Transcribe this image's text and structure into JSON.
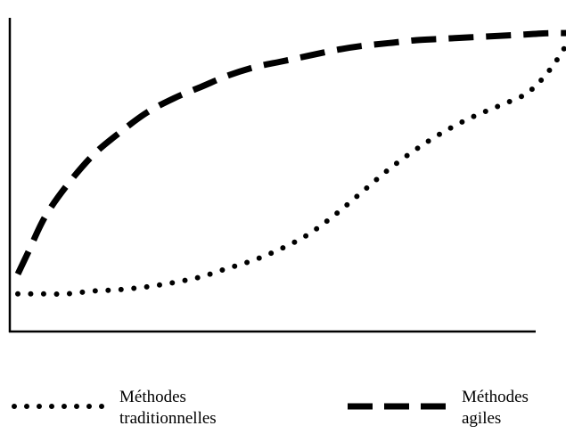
{
  "chart_data": {
    "type": "line",
    "title": "",
    "xlabel": "",
    "ylabel": "",
    "xlim": [
      0,
      100
    ],
    "ylim": [
      0,
      100
    ],
    "grid": false,
    "legend_position": "bottom",
    "series": [
      {
        "name": "Méthodes traditionnelles",
        "name_lines": [
          "Méthodes",
          "traditionnelles"
        ],
        "style": "dotted",
        "color": "#000000",
        "x": [
          1,
          5,
          10,
          15,
          20,
          25,
          30,
          35,
          40,
          45,
          50,
          55,
          60,
          65,
          70,
          75,
          80,
          85,
          90,
          95,
          97,
          99,
          101,
          103,
          104
        ],
        "y": [
          7,
          7,
          7,
          8,
          8.5,
          9.5,
          11,
          13,
          16,
          19,
          23,
          28,
          35,
          43,
          51,
          58,
          64,
          69,
          73,
          77,
          80,
          84,
          89,
          95,
          98
        ]
      },
      {
        "name": "Méthodes agiles",
        "name_lines": [
          "Méthodes",
          "agiles"
        ],
        "style": "dashed",
        "color": "#000000",
        "x": [
          1,
          3,
          6,
          10,
          15,
          20,
          25,
          30,
          35,
          40,
          45,
          50,
          55,
          60,
          65,
          70,
          75,
          80,
          85,
          90,
          95,
          100,
          104
        ],
        "y": [
          14,
          22,
          34,
          45,
          56,
          64,
          71,
          76,
          80,
          84,
          87,
          89,
          91,
          93,
          94.5,
          95.5,
          96.5,
          97,
          97.5,
          98,
          98.5,
          99,
          99
        ]
      }
    ]
  }
}
